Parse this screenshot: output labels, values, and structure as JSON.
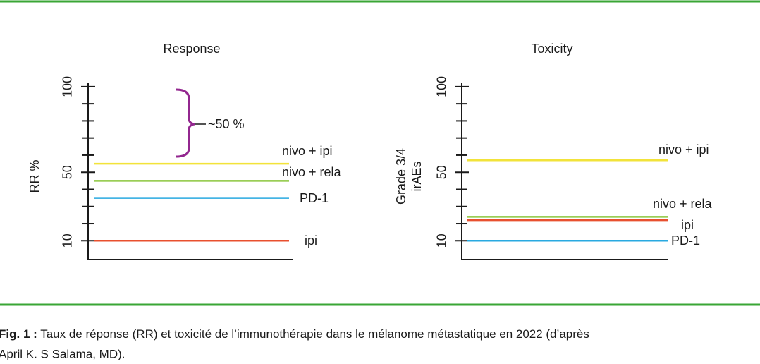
{
  "chart_data": [
    {
      "type": "level",
      "title": "Response",
      "ylabel": [
        "RR %"
      ],
      "ylim": [
        -1,
        102
      ],
      "yticks": [
        10,
        50,
        100
      ],
      "minor_yticks": [
        20,
        30,
        40,
        60,
        70,
        80,
        90
      ],
      "series": [
        {
          "name": "nivo + ipi",
          "color": "#f2e33a",
          "value": 55
        },
        {
          "name": "nivo + rela",
          "color": "#8cc63f",
          "value": 45
        },
        {
          "name": "PD-1",
          "color": "#29a9e0",
          "value": 35
        },
        {
          "name": "ipi",
          "color": "#e8502f",
          "value": 10
        }
      ],
      "annotation": "~50 %"
    },
    {
      "type": "level",
      "title": "Toxicity",
      "ylabel": [
        "Grade 3/4",
        "irAEs"
      ],
      "ylim": [
        -1,
        102
      ],
      "yticks": [
        10,
        50,
        100
      ],
      "minor_yticks": [
        20,
        30,
        40,
        60,
        70,
        80,
        90
      ],
      "series": [
        {
          "name": "nivo + ipi",
          "color": "#f2e33a",
          "value": 57
        },
        {
          "name": "nivo + rela",
          "color": "#8cc63f",
          "value": 24
        },
        {
          "name": "ipi",
          "color": "#e8502f",
          "value": 22
        },
        {
          "name": "PD-1",
          "color": "#29a9e0",
          "value": 10
        }
      ]
    }
  ],
  "caption": {
    "label": "Fig. 1 :",
    "lines": [
      "Taux de réponse (RR) et toxicité de l’immunothérapie dans le mélanome métastatique en 2022 (d’après",
      "April K. S Salama, MD)."
    ]
  }
}
